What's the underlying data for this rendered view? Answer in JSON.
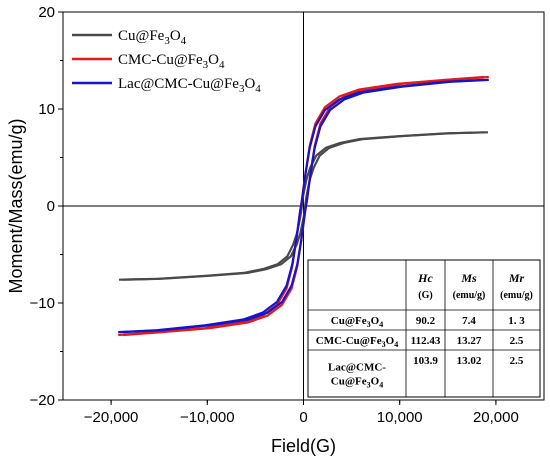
{
  "chart_data": {
    "type": "line",
    "xlabel": "Field(G)",
    "ylabel": "Moment/Mass(emu/g)",
    "xlim": [
      -25000,
      25000
    ],
    "ylim": [
      -20,
      20
    ],
    "x_ticks": [
      -20000,
      -10000,
      0,
      10000,
      20000
    ],
    "x_tick_labels": [
      "−20,000",
      "−10,000",
      "0",
      "10,000",
      "20,000"
    ],
    "y_ticks": [
      -20,
      -10,
      0,
      10,
      20
    ],
    "y_tick_labels": [
      "−20",
      "−10",
      "0",
      "10",
      "20"
    ],
    "legend_position": "top-left",
    "series": [
      {
        "name": "Cu@Fe3O4",
        "name_parts": [
          [
            "Cu@Fe",
            "n"
          ],
          [
            "3",
            "sub"
          ],
          [
            "O",
            "n"
          ],
          [
            "4",
            "sub"
          ]
        ],
        "color": "#4a4a4a",
        "x": [
          -19000,
          -15000,
          -10000,
          -6000,
          -4000,
          -2500,
          -1500,
          -900,
          -500,
          -250,
          -100,
          0,
          100,
          250,
          500,
          900,
          1500,
          2500,
          4000,
          6000,
          10000,
          15000,
          19000
        ],
        "y": [
          -7.6,
          -7.5,
          -7.2,
          -6.9,
          -6.5,
          -6.0,
          -5.2,
          -4.0,
          -2.8,
          -1.6,
          -0.8,
          0,
          0.8,
          1.6,
          2.8,
          4.0,
          5.2,
          6.0,
          6.5,
          6.9,
          7.2,
          7.5,
          7.6
        ]
      },
      {
        "name": "CMC-Cu@Fe3O4",
        "name_parts": [
          [
            "CMC-Cu@Fe",
            "n"
          ],
          [
            "3",
            "sub"
          ],
          [
            "O",
            "n"
          ],
          [
            "4",
            "sub"
          ]
        ],
        "color": "#e31a1c",
        "x": [
          -19000,
          -15000,
          -10000,
          -6000,
          -4000,
          -2500,
          -1500,
          -900,
          -500,
          -250,
          -100,
          0,
          100,
          250,
          500,
          900,
          1500,
          2500,
          4000,
          6000,
          10000,
          15000,
          19000
        ],
        "y": [
          -13.3,
          -13.0,
          -12.6,
          -12.0,
          -11.3,
          -10.2,
          -8.5,
          -6.2,
          -3.6,
          -1.8,
          -0.7,
          0,
          0.7,
          1.8,
          3.6,
          6.2,
          8.5,
          10.2,
          11.3,
          12.0,
          12.6,
          13.0,
          13.3
        ]
      },
      {
        "name": "Lac@CMC-Cu@Fe3O4",
        "name_parts": [
          [
            "Lac@CMC-Cu@Fe",
            "n"
          ],
          [
            "3",
            "sub"
          ],
          [
            "O",
            "n"
          ],
          [
            "4",
            "sub"
          ]
        ],
        "color": "#1515c8",
        "x": [
          -19000,
          -15000,
          -10000,
          -6000,
          -4000,
          -2500,
          -1500,
          -900,
          -500,
          -250,
          -100,
          0,
          100,
          250,
          500,
          900,
          1500,
          2500,
          4000,
          6000,
          10000,
          15000,
          19000
        ],
        "y": [
          -13.0,
          -12.8,
          -12.3,
          -11.7,
          -11.0,
          -9.9,
          -8.2,
          -6.0,
          -3.5,
          -1.7,
          -0.6,
          0,
          0.6,
          1.7,
          3.5,
          6.0,
          8.2,
          9.9,
          11.0,
          11.7,
          12.3,
          12.8,
          13.0
        ]
      }
    ],
    "table": {
      "header": [
        {
          "main": "Hc",
          "unit": "(G)"
        },
        {
          "main": "Ms",
          "unit": "(emu/g)"
        },
        {
          "main": "Mr",
          "unit": "(emu/g)"
        }
      ],
      "rows": [
        {
          "label_lines": [
            [
              [
                "Cu@Fe",
                "n"
              ],
              [
                "3",
                "sub"
              ],
              [
                "O",
                "n"
              ],
              [
                "4",
                "sub"
              ]
            ]
          ],
          "values": [
            "90.2",
            "7.4",
            "1. 3"
          ]
        },
        {
          "label_lines": [
            [
              [
                "CMC-Cu@Fe",
                "n"
              ],
              [
                "3",
                "sub"
              ],
              [
                "O",
                "n"
              ],
              [
                "4",
                "sub"
              ]
            ]
          ],
          "values": [
            "112.43",
            "13.27",
            "2.5"
          ]
        },
        {
          "label_lines": [
            [
              [
                "Lac@CMC-",
                "n"
              ]
            ],
            [
              [
                "Cu@Fe",
                "n"
              ],
              [
                "3",
                "sub"
              ],
              [
                "O",
                "n"
              ],
              [
                "4",
                "sub"
              ]
            ]
          ],
          "values": [
            "103.9",
            "13.02",
            "2.5"
          ]
        }
      ]
    }
  }
}
